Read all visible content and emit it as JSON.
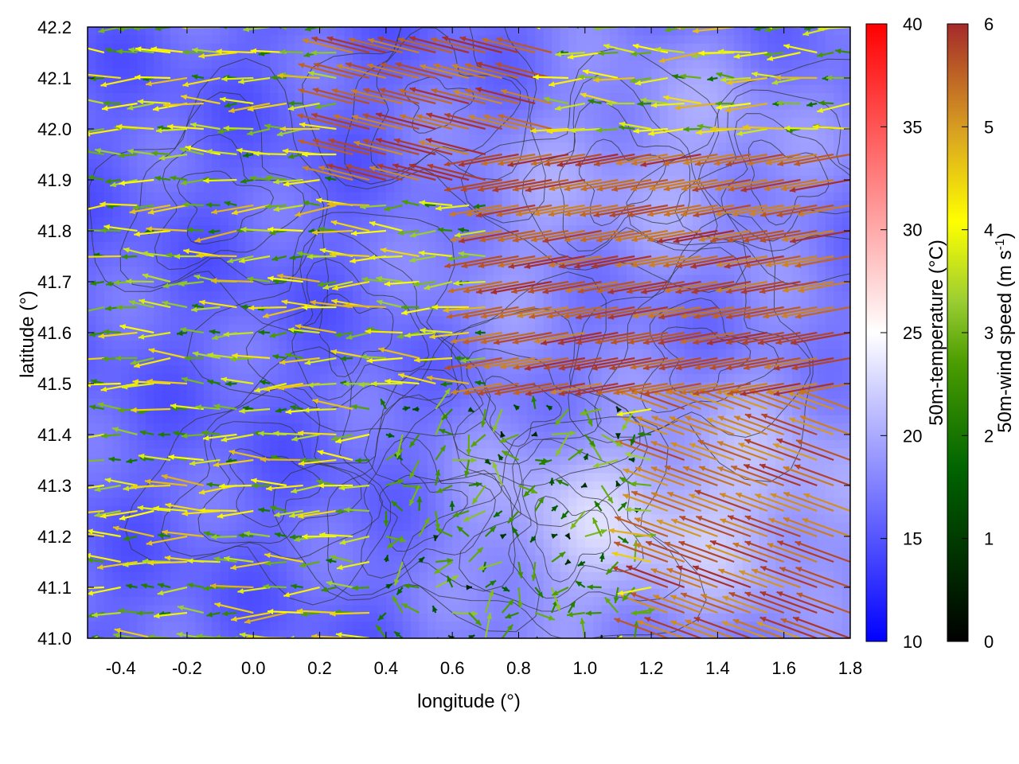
{
  "chart_data": {
    "type": "heatmap",
    "subtype": "temperature field with wind vectors and terrain contours",
    "xlabel": "longitude (°)",
    "ylabel": "latitude (°)",
    "xlim": [
      -0.5,
      1.8
    ],
    "ylim": [
      41.0,
      42.2
    ],
    "xticks": [
      "-0.4",
      "-0.2",
      "0.0",
      "0.2",
      "0.4",
      "0.6",
      "0.8",
      "1.0",
      "1.2",
      "1.4",
      "1.6",
      "1.8"
    ],
    "yticks": [
      "41.0",
      "41.1",
      "41.2",
      "41.3",
      "41.4",
      "41.5",
      "41.6",
      "41.7",
      "41.8",
      "41.9",
      "42.0",
      "42.1",
      "42.2"
    ],
    "colorbar_temperature": {
      "label": "50m-temperature (°C)",
      "range": [
        10,
        40
      ],
      "ticks": [
        "10",
        "15",
        "20",
        "25",
        "30",
        "35",
        "40"
      ],
      "colors": [
        "#0000ff",
        "#ffffff",
        "#ff0000"
      ]
    },
    "colorbar_wind": {
      "label_main": "50m-wind speed (m s",
      "label_sup": "-1",
      "label_end": ")",
      "range": [
        0,
        6
      ],
      "ticks": [
        "0",
        "1",
        "2",
        "3",
        "4",
        "5",
        "6"
      ],
      "colors": [
        "#000000",
        "#006400",
        "#4a9c00",
        "#9acd32",
        "#ffff00",
        "#daa520",
        "#cd7f1e",
        "#a52a2a"
      ]
    },
    "grid": false,
    "legend": "none",
    "wind_regimes": [
      {
        "region": "west and central",
        "direction": "from east",
        "speed_range": [
          0.5,
          3.5
        ]
      },
      {
        "region": "central-east band 41.5-41.9",
        "direction": "from east-northeast",
        "speed_range": [
          5,
          6
        ]
      },
      {
        "region": "south-east 41.0-41.4",
        "direction": "from east-southeast",
        "speed_range": [
          4.5,
          6
        ]
      },
      {
        "region": "south-central valley",
        "direction": "weak / calm",
        "speed_range": [
          0,
          2
        ]
      }
    ],
    "temperature_regimes": [
      {
        "region": "west half",
        "value_range": [
          15,
          18
        ]
      },
      {
        "region": "south-east lowland",
        "value_range": [
          20,
          23
        ]
      },
      {
        "region": "north-east",
        "value_range": [
          19,
          22
        ]
      }
    ]
  }
}
